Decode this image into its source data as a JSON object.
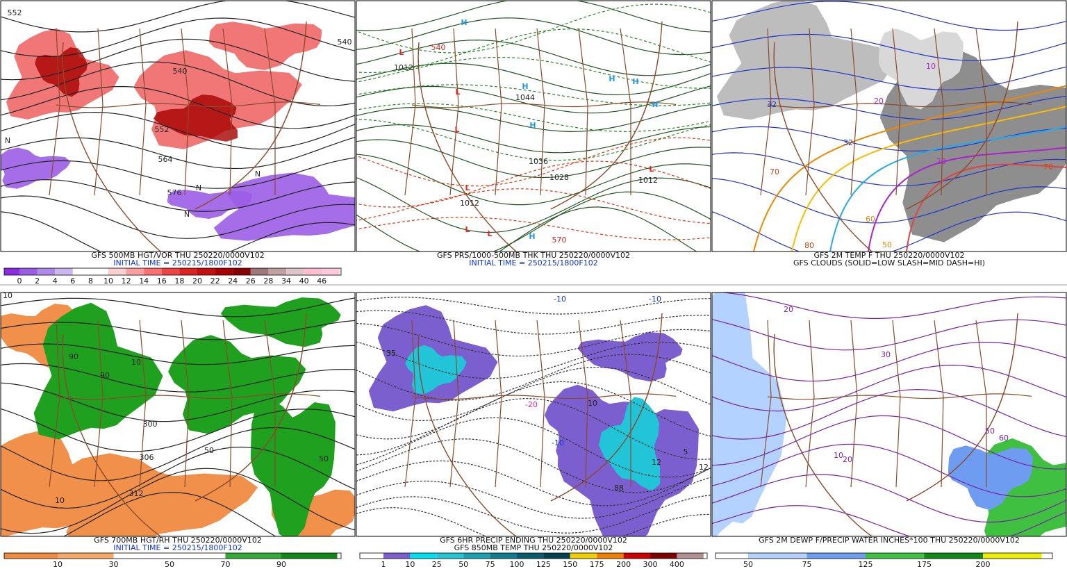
{
  "panels": [
    {
      "captions": [
        "GFS 500MB HGT/VOR THU 250220/0000V102",
        "INITIAL TIME = 250215/1800F102"
      ],
      "colorbar": {
        "labels": [
          "0",
          "2",
          "4",
          "6",
          "8",
          "10",
          "12",
          "14",
          "16",
          "18",
          "20",
          "22",
          "24",
          "26",
          "28",
          "34",
          "40",
          "46"
        ],
        "colors": [
          "#8a2be2",
          "#9b5de5",
          "#b08ae8",
          "#cbb6f2",
          "#ffffff",
          "#ffffff",
          "#ffd0d0",
          "#ffa0a0",
          "#ff7070",
          "#ee4444",
          "#dd2222",
          "#c41010",
          "#a80000",
          "#880000",
          "#a07878",
          "#c0a0a0",
          "#e0c4cc",
          "#ffbfd0",
          "#ffc8dc"
        ]
      },
      "map_labels": [
        "552",
        "540",
        "540",
        "552",
        "564",
        "576",
        "N",
        "N",
        "N",
        "N"
      ]
    },
    {
      "captions": [
        "GFS PRS/1000-500MB THK THU 250220/0000V102",
        "INITIAL TIME = 250215/1800F102"
      ],
      "colorbar": null,
      "map_labels": [
        "H",
        "L",
        "L",
        "L",
        "L",
        "L",
        "L",
        "H",
        "H",
        "H",
        "H",
        "H",
        "H",
        "L",
        "1012",
        "1044",
        "1036",
        "1028",
        "1012",
        "540",
        "570",
        "1012"
      ]
    },
    {
      "captions": [
        "GFS 2M TEMP F THU 250220/0000V102",
        "GFS CLOUDS (SOLID=LOW SLASH=MID DASH=HI)"
      ],
      "colorbar": null,
      "map_labels": [
        "32",
        "32",
        "20",
        "20",
        "10",
        "70",
        "80",
        "60",
        "50",
        "70"
      ]
    },
    {
      "captions": [
        "GFS 700MB HGT/RH THU 250220/0000V102",
        "INITIAL TIME = 250215/1800F102"
      ],
      "colorbar": {
        "labels": [
          "10",
          "30",
          "50",
          "70",
          "90"
        ],
        "colors": [
          "#f08a40",
          "#f6a866",
          "#ffffff",
          "#ffffff",
          "#33aa33",
          "#118811"
        ]
      },
      "map_labels": [
        "10",
        "90",
        "10",
        "50",
        "300",
        "306",
        "312",
        "90",
        "10",
        "50"
      ]
    },
    {
      "captions": [
        "GFS 6HR PRECIP ENDING THU 250220/0000V102",
        "GFS 850MB TEMP THU 250220/0000V102"
      ],
      "colorbar": {
        "labels": [
          "1",
          "10",
          "25",
          "50",
          "75",
          "100",
          "125",
          "150",
          "175",
          "200",
          "300",
          "400"
        ],
        "colors": [
          "#ffffff",
          "#7b5fcf",
          "#00e0f0",
          "#22c4d8",
          "#1aa0b4",
          "#0f7c90",
          "#0a5a70",
          "#064050",
          "#f0d000",
          "#f08000",
          "#d00000",
          "#800000",
          "#b09090"
        ]
      },
      "map_labels": [
        "-10",
        "-10",
        "-20",
        "-10",
        "35",
        "12",
        "88",
        "5",
        "12",
        "10"
      ]
    },
    {
      "captions": [
        "GFS 2M DEWP F/PRECIP WATER INCHES*100 THU 250220/0000V102"
      ],
      "colorbar": {
        "labels": [
          "50",
          "75",
          "125",
          "175",
          "200"
        ],
        "colors": [
          "#ffffff",
          "#b4d2ff",
          "#6e9cf0",
          "#40c040",
          "#118811",
          "#eeee00"
        ]
      },
      "map_labels": [
        "20",
        "10",
        "20",
        "30",
        "50",
        "60"
      ]
    }
  ]
}
